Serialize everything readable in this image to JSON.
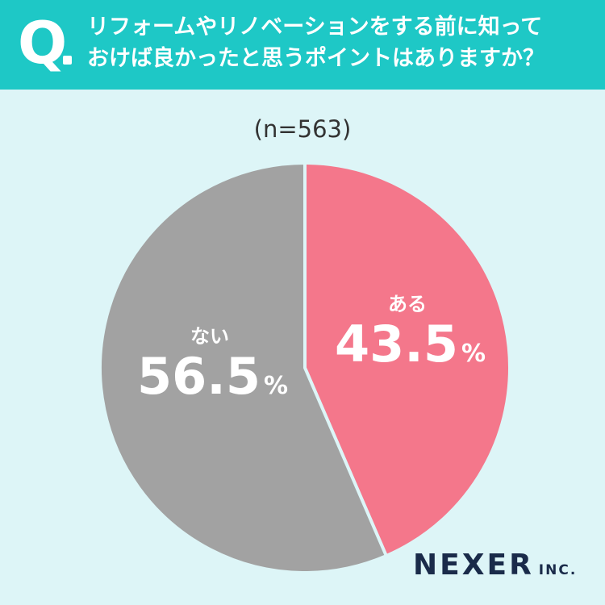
{
  "header": {
    "q_letter": "Q",
    "question_line1": "リフォームやリノベーションをする前に知って",
    "question_line2": "おけば良かったと思うポイントはありますか？"
  },
  "sample_size_label": "(n=563)",
  "chart_data": {
    "type": "pie",
    "slices": [
      {
        "label": "ある",
        "value": 43.5,
        "display": "43.5",
        "unit": "%",
        "color": "#f4778b"
      },
      {
        "label": "ない",
        "value": 56.5,
        "display": "56.5",
        "unit": "%",
        "color": "#a2a2a2"
      }
    ]
  },
  "brand": {
    "main": "NEXER",
    "sub": "INC."
  },
  "colors": {
    "header_bg": "#1ec8c6",
    "page_bg": "#ddf5f7",
    "aru_slice": "#f4778b",
    "nai_slice": "#a2a2a2",
    "brand_text": "#1a2b4a"
  }
}
